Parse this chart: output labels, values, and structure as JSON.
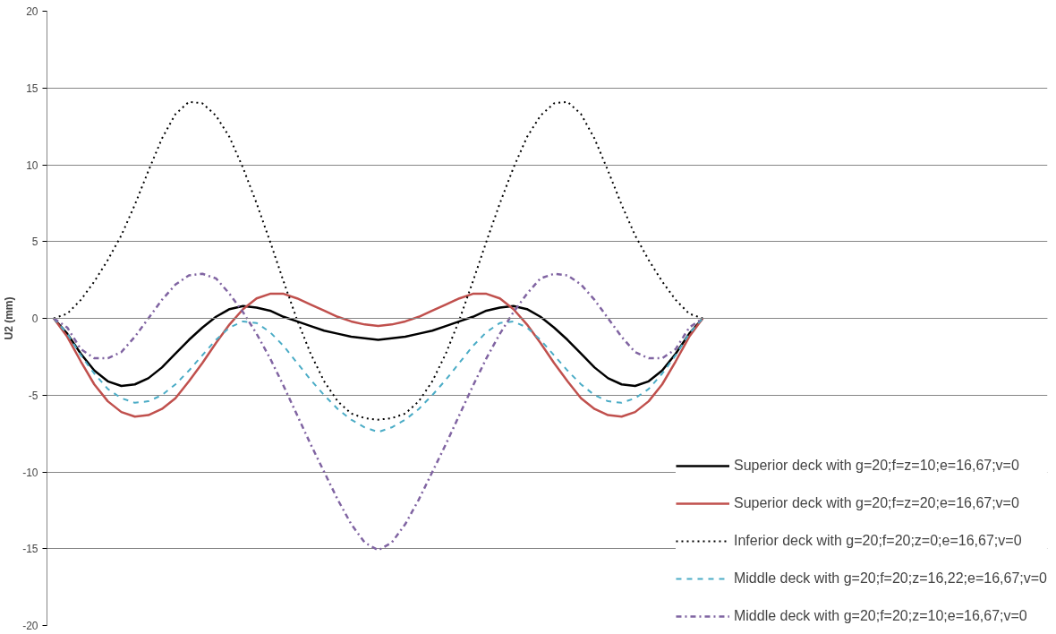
{
  "chart_data": {
    "type": "line",
    "ylabel": "U2 (mm)",
    "categories": [
      null,
      null,
      null,
      null,
      null,
      null,
      null,
      null,
      null,
      null,
      null,
      null,
      null,
      null,
      null,
      null,
      null,
      null,
      null,
      null,
      null,
      null,
      null,
      null,
      null,
      null,
      null,
      null,
      null,
      null,
      null,
      null,
      null,
      null,
      null,
      null,
      null,
      null,
      null,
      null,
      null,
      null,
      null,
      null,
      null,
      null,
      null,
      null,
      null
    ],
    "ylim": [
      -20,
      20
    ],
    "yticks": [
      -20,
      -15,
      -10,
      -5,
      0,
      5,
      10,
      15,
      20
    ],
    "grid": "y",
    "legend": "bottom right",
    "series": [
      {
        "name": "Superior deck with g=20;f=z=10;e=16,67;v=0",
        "color": "#000000",
        "line_style": "solid",
        "values": [
          0,
          -1.0,
          -2.3,
          -3.4,
          -4.1,
          -4.4,
          -4.3,
          -3.9,
          -3.2,
          -2.3,
          -1.4,
          -0.6,
          0.1,
          0.6,
          0.8,
          0.7,
          0.5,
          0.1,
          -0.2,
          -0.5,
          -0.8,
          -1.0,
          -1.2,
          -1.3,
          -1.4,
          -1.3,
          -1.2,
          -1.0,
          -0.8,
          -0.5,
          -0.2,
          0.1,
          0.5,
          0.7,
          0.8,
          0.6,
          0.1,
          -0.6,
          -1.4,
          -2.3,
          -3.2,
          -3.9,
          -4.3,
          -4.4,
          -4.1,
          -3.4,
          -2.3,
          -1.0,
          0
        ]
      },
      {
        "name": "Superior deck with g=20;f=z=20;e=16,67;v=0",
        "color": "#c0504d",
        "line_style": "solid",
        "values": [
          0,
          -1.2,
          -2.8,
          -4.3,
          -5.4,
          -6.1,
          -6.4,
          -6.3,
          -5.9,
          -5.2,
          -4.1,
          -2.9,
          -1.6,
          -0.4,
          0.6,
          1.3,
          1.6,
          1.6,
          1.3,
          0.9,
          0.5,
          0.1,
          -0.2,
          -0.4,
          -0.5,
          -0.4,
          -0.2,
          0.1,
          0.5,
          0.9,
          1.3,
          1.6,
          1.6,
          1.3,
          0.6,
          -0.4,
          -1.6,
          -2.9,
          -4.1,
          -5.2,
          -5.9,
          -6.3,
          -6.4,
          -6.1,
          -5.4,
          -4.3,
          -2.8,
          -1.2,
          0
        ]
      },
      {
        "name": "Inferior deck with g=20;f=20;z=0;e=16,67;v=0",
        "color": "#000000",
        "line_style": "dotted",
        "values": [
          0,
          0.3,
          1.2,
          2.4,
          3.8,
          5.4,
          7.4,
          9.6,
          11.7,
          13.3,
          14.1,
          14.0,
          13.2,
          11.8,
          9.8,
          7.5,
          5.0,
          2.4,
          -0.1,
          -2.3,
          -4.1,
          -5.4,
          -6.2,
          -6.5,
          -6.6,
          -6.5,
          -6.2,
          -5.4,
          -4.1,
          -2.3,
          -0.1,
          2.4,
          5.0,
          7.5,
          9.8,
          11.8,
          13.2,
          14.0,
          14.1,
          13.3,
          11.7,
          9.6,
          7.4,
          5.4,
          3.8,
          2.4,
          1.2,
          0.3,
          0
        ]
      },
      {
        "name": "Middle deck with g=20;f=20;z=16,22;e=16,67;v=0",
        "color": "#4bacc6",
        "line_style": "dashed",
        "values": [
          0,
          -1.0,
          -2.4,
          -3.6,
          -4.6,
          -5.2,
          -5.5,
          -5.4,
          -5.0,
          -4.3,
          -3.4,
          -2.4,
          -1.4,
          -0.6,
          -0.2,
          -0.3,
          -0.9,
          -1.8,
          -2.9,
          -4.0,
          -5.0,
          -5.9,
          -6.6,
          -7.1,
          -7.4,
          -7.1,
          -6.6,
          -5.9,
          -5.0,
          -4.0,
          -2.9,
          -1.8,
          -0.9,
          -0.3,
          -0.2,
          -0.6,
          -1.4,
          -2.4,
          -3.4,
          -4.3,
          -5.0,
          -5.4,
          -5.5,
          -5.2,
          -4.6,
          -3.6,
          -2.4,
          -1.0,
          0
        ]
      },
      {
        "name": "Middle deck with g=20;f=20;z=10;e=16,67;v=0",
        "color": "#8064a2",
        "line_style": "dashdot",
        "values": [
          0,
          -0.6,
          -2.0,
          -2.6,
          -2.6,
          -2.2,
          -1.2,
          0.0,
          1.2,
          2.2,
          2.8,
          2.9,
          2.6,
          1.6,
          0.4,
          -1.0,
          -2.6,
          -4.4,
          -6.3,
          -8.2,
          -10.0,
          -11.8,
          -13.4,
          -14.6,
          -15.1,
          -14.6,
          -13.4,
          -11.8,
          -10.0,
          -8.2,
          -6.3,
          -4.4,
          -2.6,
          -1.0,
          0.4,
          1.6,
          2.6,
          2.9,
          2.8,
          2.2,
          1.2,
          0.0,
          -1.2,
          -2.2,
          -2.6,
          -2.6,
          -2.0,
          -0.6,
          0
        ]
      }
    ]
  }
}
